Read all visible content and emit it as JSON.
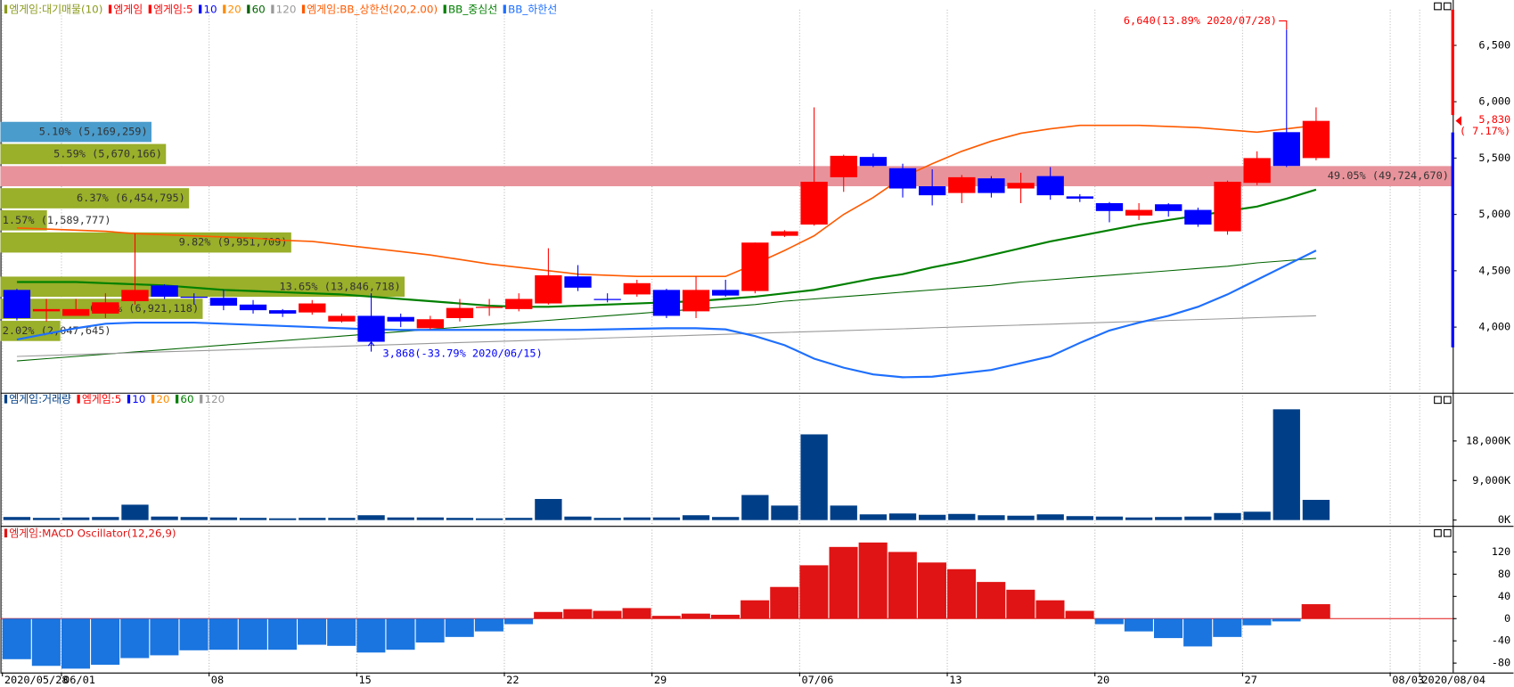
{
  "grid": true,
  "chart_data": [
    {
      "type": "candlestick",
      "categories": [
        "2020/05/28",
        null,
        "06/01",
        null,
        null,
        null,
        null,
        "08",
        null,
        null,
        null,
        null,
        "15",
        null,
        null,
        null,
        null,
        "22",
        null,
        null,
        null,
        null,
        "29",
        null,
        null,
        null,
        null,
        "07/06",
        null,
        null,
        null,
        null,
        "13",
        null,
        null,
        null,
        null,
        "20",
        null,
        null,
        null,
        null,
        "27",
        null,
        null,
        null,
        null,
        "08/03",
        "2020/08/04"
      ],
      "up_color": "#ff0000",
      "down_color": "#0000ff",
      "open": [
        4330,
        4140,
        4100,
        4120,
        4230,
        4370,
        4270,
        4260,
        4200,
        4150,
        4130,
        4050,
        4100,
        4090,
        3990,
        4080,
        4170,
        4160,
        4210,
        4450,
        4250,
        4290,
        4330,
        4140,
        4330,
        4320,
        4810,
        4910,
        5330,
        5510,
        5410,
        5250,
        5190,
        5320,
        5230,
        5340,
        5160,
        5100,
        4990,
        5090,
        5040,
        4850,
        5280,
        5730,
        5500,
        null,
        null,
        null,
        null
      ],
      "high": [
        4340,
        4250,
        4250,
        4300,
        4830,
        4380,
        4300,
        4330,
        4240,
        4160,
        4240,
        4120,
        4300,
        4120,
        4100,
        4250,
        4250,
        4300,
        4700,
        4550,
        4300,
        4420,
        4340,
        4450,
        4420,
        4750,
        4860,
        5950,
        5530,
        5540,
        5450,
        5400,
        5350,
        5340,
        5370,
        5420,
        5180,
        5110,
        5100,
        5100,
        5060,
        5300,
        5560,
        6640,
        5950,
        null,
        null,
        null,
        null
      ],
      "low": [
        4060,
        4050,
        4100,
        4080,
        4200,
        4250,
        4200,
        4150,
        4120,
        4090,
        4110,
        4040,
        3868,
        4000,
        3980,
        4050,
        4100,
        4140,
        4200,
        4320,
        4220,
        4270,
        4080,
        4080,
        4270,
        4300,
        4800,
        4900,
        5200,
        5420,
        5150,
        5080,
        5100,
        5150,
        5100,
        5130,
        5110,
        4930,
        4950,
        4980,
        4890,
        4820,
        5260,
        5420,
        5480,
        null,
        null,
        null,
        null
      ],
      "close": [
        4080,
        4160,
        4160,
        4220,
        4330,
        4270,
        4260,
        4190,
        4150,
        4120,
        4210,
        4100,
        3870,
        4050,
        4070,
        4170,
        4180,
        4250,
        4460,
        4350,
        4240,
        4390,
        4100,
        4330,
        4280,
        4750,
        4850,
        5290,
        5520,
        5430,
        5230,
        5170,
        5330,
        5190,
        5280,
        5170,
        5140,
        5030,
        5040,
        5030,
        4910,
        5290,
        5500,
        5430,
        5830,
        null,
        null,
        null,
        null
      ],
      "ylim": [
        3435,
        6817
      ],
      "yticks": [
        {
          "value": 4000,
          "label": "4,000"
        },
        {
          "value": 4500,
          "label": "4,500"
        },
        {
          "value": 5000,
          "label": "5,000"
        },
        {
          "value": 5500,
          "label": "5,500"
        },
        {
          "value": 6000,
          "label": "6,000"
        },
        {
          "value": 6500,
          "label": "6,500"
        }
      ],
      "series": [
        {
          "name": "엠게임:대기매물(10)",
          "color": "#8a9a1a"
        },
        {
          "name": "엠게임",
          "color": "#ff0000"
        },
        {
          "name": "엠게임:5",
          "color": "#ff0000"
        },
        {
          "name": "10",
          "color": "#0000ff"
        },
        {
          "name": "20",
          "color": "#ff8c00"
        },
        {
          "name": "60",
          "color": "#006400",
          "values": [
            3700,
            3720,
            3740,
            3760,
            3780,
            3800,
            3820,
            3840,
            3860,
            3880,
            3900,
            3920,
            3940,
            3960,
            3980,
            4000,
            4020,
            4040,
            4060,
            4080,
            4100,
            4120,
            4140,
            4160,
            4180,
            4200,
            4230,
            4250,
            4270,
            4290,
            4310,
            4330,
            4350,
            4370,
            4400,
            4420,
            4440,
            4460,
            4480,
            4500,
            4520,
            4540,
            4570,
            4590,
            4610,
            null,
            null,
            null,
            null
          ]
        },
        {
          "name": "120",
          "color": "#999999",
          "values": [
            3740,
            3748,
            3756,
            3765,
            3773,
            3781,
            3789,
            3797,
            3805,
            3814,
            3822,
            3830,
            3838,
            3846,
            3855,
            3863,
            3871,
            3879,
            3887,
            3895,
            3904,
            3912,
            3920,
            3928,
            3936,
            3945,
            3953,
            3961,
            3969,
            3977,
            3985,
            3994,
            4002,
            4010,
            4018,
            4026,
            4035,
            4043,
            4051,
            4059,
            4067,
            4075,
            4084,
            4092,
            4100,
            null,
            null,
            null,
            null
          ]
        },
        {
          "name": "엠게임:BB_상한선(20,2.00)",
          "color": "#ff5a00",
          "values": [
            4880,
            4870,
            4860,
            4850,
            4830,
            4820,
            4810,
            4800,
            4790,
            4770,
            4760,
            4730,
            4700,
            4670,
            4640,
            4600,
            4560,
            4530,
            4500,
            4470,
            4460,
            4450,
            4450,
            4450,
            4450,
            4560,
            4680,
            4810,
            5000,
            5150,
            5330,
            5450,
            5560,
            5650,
            5720,
            5760,
            5790,
            5790,
            5790,
            5780,
            5770,
            5750,
            5730,
            5760,
            5790,
            null,
            null,
            null,
            null
          ]
        },
        {
          "name": "BB_중심선",
          "color": "#008000",
          "values": [
            4400,
            4400,
            4400,
            4390,
            4380,
            4370,
            4350,
            4330,
            4320,
            4310,
            4300,
            4290,
            4270,
            4250,
            4230,
            4210,
            4190,
            4180,
            4180,
            4190,
            4200,
            4210,
            4220,
            4230,
            4250,
            4270,
            4300,
            4330,
            4380,
            4430,
            4470,
            4530,
            4580,
            4640,
            4700,
            4760,
            4810,
            4860,
            4910,
            4950,
            4990,
            5030,
            5070,
            5140,
            5220,
            null,
            null,
            null,
            null
          ]
        },
        {
          "name": "BB_하한선",
          "color": "#1e6fff",
          "values": [
            3890,
            3940,
            3990,
            4030,
            4040,
            4040,
            4040,
            4030,
            4020,
            4010,
            4000,
            3990,
            3980,
            3975,
            3975,
            3975,
            3975,
            3975,
            3975,
            3975,
            3980,
            3985,
            3990,
            3990,
            3980,
            3920,
            3840,
            3720,
            3640,
            3580,
            3555,
            3560,
            3590,
            3620,
            3680,
            3740,
            3860,
            3970,
            4040,
            4100,
            4180,
            4290,
            4420,
            4550,
            4680,
            null,
            null,
            null,
            null
          ]
        }
      ],
      "volume_profile": {
        "bins": [
          3868,
          4064.2,
          4260.4,
          4456.6,
          4652.8,
          4849,
          5045.2,
          5241.4,
          5437.6,
          5633.8,
          5830
        ],
        "values": [
          2.02,
          6.83,
          13.65,
          0,
          9.82,
          1.57,
          6.37,
          49.05,
          5.59,
          5.1
        ],
        "labels": [
          "2.02% (2,047,645)",
          "6.83% (6,921,118)",
          "13.65% (13,846,718)",
          null,
          "9.82% (9,951,709)",
          "1.57% (1,589,777)",
          "6.37% (6,454,795)",
          "49.05% (49,724,670)",
          "5.59% (5,670,166)",
          "5.10% (5,169,259)"
        ],
        "colors": [
          "#9aaf2a",
          "#9aaf2a",
          "#9aaf2a",
          "#9aaf2a",
          "#9aaf2a",
          "#9aaf2a",
          "#9aaf2a",
          "#e8939b",
          "#9aaf2a",
          "#4a9ccc"
        ]
      },
      "annotations": [
        {
          "text": "6,640(13.89% 2020/07/28)",
          "value": 6640,
          "color": "#ff0000"
        },
        {
          "text": "3,868(-33.79% 2020/06/15)",
          "value": 3868,
          "color": "#0000ff"
        }
      ],
      "price_tag": {
        "value": 5830,
        "label": "5,830",
        "change": "( 7.17%)",
        "color": "#ff0000"
      }
    },
    {
      "type": "bar",
      "color": "#003f88",
      "values": [
        700,
        500,
        600,
        700,
        3500,
        800,
        700,
        600,
        500,
        400,
        500,
        500,
        1100,
        600,
        600,
        500,
        400,
        500,
        4800,
        800,
        500,
        600,
        600,
        1100,
        700,
        5700,
        3300,
        19500,
        3300,
        1300,
        1500,
        1200,
        1400,
        1100,
        1000,
        1300,
        900,
        800,
        600,
        700,
        800,
        1600,
        1900,
        25200,
        4600,
        null,
        null,
        null,
        null
      ],
      "ylim": [
        -1317,
        28317
      ],
      "yticks": [
        {
          "value": 0,
          "label": "0K"
        },
        {
          "value": 9000,
          "label": "9,000K"
        },
        {
          "value": 18000,
          "label": "18,000K"
        }
      ],
      "series": [
        {
          "name": "엠게임:거래량",
          "color": "#003f88"
        },
        {
          "name": "엠게임:5",
          "color": "#ff0000"
        },
        {
          "name": "10",
          "color": "#0000ff"
        },
        {
          "name": "20",
          "color": "#ff8c00"
        },
        {
          "name": "60",
          "color": "#008000"
        },
        {
          "name": "120",
          "color": "#999999"
        }
      ]
    },
    {
      "type": "oscillator",
      "pos_color": "#e01414",
      "neg_color": "#1a75e0",
      "values": [
        -73,
        -85,
        -90,
        -83,
        -71,
        -66,
        -57,
        -56,
        -56,
        -56,
        -47,
        -49,
        -61,
        -56,
        -43,
        -33,
        -23,
        -10,
        12,
        17,
        14,
        19,
        5,
        9,
        7,
        33,
        57,
        96,
        129,
        137,
        120,
        101,
        89,
        66,
        52,
        33,
        14,
        -10,
        -23,
        -35,
        -50,
        -33,
        -12,
        -5,
        26,
        null,
        null,
        null,
        null
      ],
      "ylim": [
        -97,
        160
      ],
      "yticks": [
        -80,
        -40,
        0,
        40,
        80,
        120
      ],
      "series": [
        {
          "name": "엠게임:MACD Oscillator(12,26,9)",
          "color": "#e01414"
        }
      ]
    }
  ]
}
